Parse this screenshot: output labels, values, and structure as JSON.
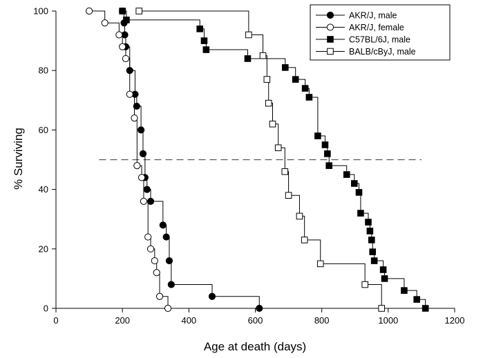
{
  "chart_data": {
    "type": "line",
    "subtype": "kaplan-meier survival (step)",
    "xlabel": "Age at death (days)",
    "ylabel": "% Surviving",
    "xlim": [
      0,
      1200
    ],
    "ylim": [
      0,
      100
    ],
    "x_ticks": [
      "0",
      "200",
      "400",
      "600",
      "800",
      "1000",
      "1200"
    ],
    "y_ticks": [
      "0",
      "20",
      "40",
      "60",
      "80",
      "100"
    ],
    "grid": false,
    "legend_position": "top-right",
    "reference_line": {
      "y": 50,
      "x_start": 130,
      "x_end": 1100,
      "style": "dashed"
    },
    "series": [
      {
        "name": "AKR/J, male",
        "marker": "filled-circle",
        "points": [
          [
            200,
            100
          ],
          [
            205,
            96
          ],
          [
            207,
            92
          ],
          [
            210,
            88
          ],
          [
            222,
            80
          ],
          [
            238,
            72
          ],
          [
            243,
            68
          ],
          [
            256,
            60
          ],
          [
            262,
            52
          ],
          [
            268,
            44
          ],
          [
            274,
            40
          ],
          [
            285,
            36
          ],
          [
            322,
            28
          ],
          [
            332,
            24
          ],
          [
            341,
            16
          ],
          [
            347,
            8
          ],
          [
            470,
            4
          ],
          [
            612,
            0
          ]
        ]
      },
      {
        "name": "AKR/J, female",
        "marker": "open-circle",
        "points": [
          [
            100,
            100
          ],
          [
            147,
            96
          ],
          [
            190,
            92
          ],
          [
            200,
            88
          ],
          [
            210,
            84
          ],
          [
            222,
            72
          ],
          [
            236,
            64
          ],
          [
            244,
            48
          ],
          [
            258,
            44
          ],
          [
            264,
            36
          ],
          [
            277,
            24
          ],
          [
            285,
            20
          ],
          [
            297,
            16
          ],
          [
            303,
            12
          ],
          [
            312,
            4
          ],
          [
            337,
            0
          ]
        ]
      },
      {
        "name": "C57BL/6J, male",
        "marker": "filled-square",
        "points": [
          [
            200,
            100
          ],
          [
            212,
            97
          ],
          [
            433,
            94
          ],
          [
            446,
            90
          ],
          [
            452,
            87
          ],
          [
            577,
            84
          ],
          [
            690,
            81
          ],
          [
            721,
            77
          ],
          [
            750,
            74
          ],
          [
            762,
            71
          ],
          [
            788,
            58
          ],
          [
            810,
            55
          ],
          [
            817,
            52
          ],
          [
            822,
            48
          ],
          [
            875,
            45
          ],
          [
            898,
            42
          ],
          [
            912,
            39
          ],
          [
            917,
            32
          ],
          [
            940,
            29
          ],
          [
            945,
            26
          ],
          [
            950,
            23
          ],
          [
            953,
            19
          ],
          [
            958,
            16
          ],
          [
            985,
            13
          ],
          [
            989,
            10
          ],
          [
            1048,
            6
          ],
          [
            1086,
            3
          ],
          [
            1112,
            0
          ]
        ]
      },
      {
        "name": "BALB/cByJ, male",
        "marker": "open-square",
        "points": [
          [
            250,
            100
          ],
          [
            580,
            92
          ],
          [
            623,
            85
          ],
          [
            635,
            77
          ],
          [
            640,
            69
          ],
          [
            652,
            62
          ],
          [
            669,
            54
          ],
          [
            689,
            46
          ],
          [
            700,
            38
          ],
          [
            733,
            31
          ],
          [
            748,
            23
          ],
          [
            796,
            15
          ],
          [
            930,
            8
          ],
          [
            980,
            0
          ]
        ]
      }
    ]
  }
}
